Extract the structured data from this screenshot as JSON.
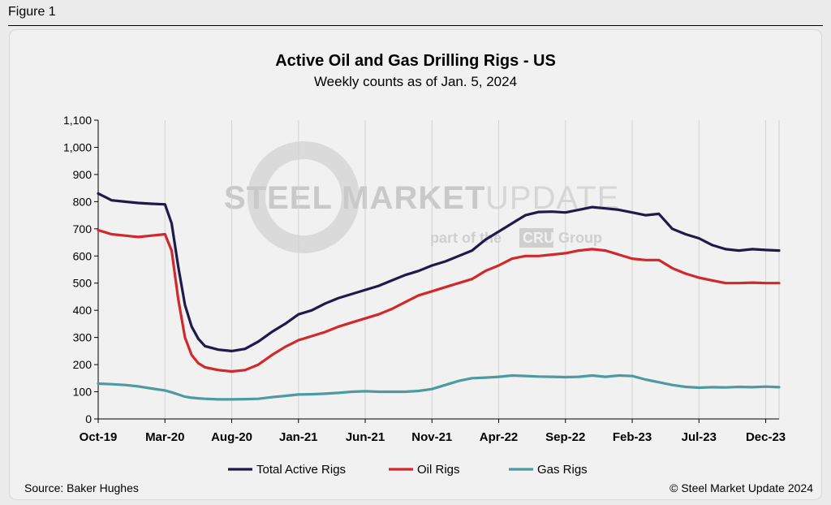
{
  "figure_label": "Figure 1",
  "source": "Source: Baker Hughes",
  "copyright": "© Steel Market Update 2024",
  "watermark": {
    "main_bold": "STEEL MARKET",
    "main_light": "UPDATE",
    "sub_before": "part of the",
    "sub_brand": "CRU",
    "sub_after": "Group"
  },
  "chart_data": {
    "type": "line",
    "title": "Active Oil and Gas Drilling Rigs - US",
    "subtitle": "Weekly counts as of Jan. 5, 2024",
    "xlabel": "",
    "ylabel": "",
    "ylim": [
      0,
      1100
    ],
    "yticks": [
      0,
      100,
      200,
      300,
      400,
      500,
      600,
      700,
      800,
      900,
      1000,
      1100
    ],
    "ytick_labels": [
      "0",
      "100",
      "200",
      "300",
      "400",
      "500",
      "600",
      "700",
      "800",
      "900",
      "1,000",
      "1,100"
    ],
    "x_tick_labels": [
      "Oct-19",
      "Mar-20",
      "Aug-20",
      "Jan-21",
      "Jun-21",
      "Nov-21",
      "Apr-22",
      "Sep-22",
      "Feb-23",
      "Jul-23",
      "Dec-23"
    ],
    "x_tick_months": [
      0,
      5,
      10,
      15,
      20,
      25,
      30,
      35,
      40,
      45,
      50
    ],
    "xlim_months": [
      0,
      51
    ],
    "grid": "vertical",
    "legend_position": "bottom",
    "x": [
      0,
      1,
      2,
      3,
      4,
      5,
      5.5,
      6,
      6.5,
      7,
      7.5,
      8,
      9,
      10,
      11,
      12,
      13,
      14,
      15,
      16,
      17,
      18,
      19,
      20,
      21,
      22,
      23,
      24,
      25,
      26,
      27,
      28,
      29,
      30,
      31,
      32,
      33,
      34,
      35,
      36,
      37,
      38,
      39,
      40,
      41,
      42,
      43,
      44,
      45,
      46,
      47,
      48,
      49,
      50,
      51
    ],
    "series": [
      {
        "name": "Total Active Rigs",
        "color": "#1f1a4a",
        "values": [
          830,
          805,
          800,
          795,
          792,
          790,
          720,
          560,
          420,
          340,
          295,
          268,
          255,
          250,
          258,
          285,
          320,
          350,
          385,
          400,
          425,
          445,
          460,
          475,
          490,
          510,
          530,
          545,
          565,
          580,
          600,
          620,
          660,
          690,
          720,
          750,
          762,
          763,
          760,
          770,
          780,
          775,
          770,
          760,
          750,
          755,
          700,
          680,
          665,
          640,
          625,
          620,
          625,
          622,
          620
        ]
      },
      {
        "name": "Oil Rigs",
        "color": "#d1282c",
        "values": [
          695,
          680,
          675,
          670,
          675,
          680,
          620,
          440,
          300,
          235,
          205,
          190,
          180,
          175,
          180,
          200,
          235,
          265,
          290,
          305,
          320,
          340,
          355,
          370,
          385,
          405,
          430,
          455,
          470,
          485,
          500,
          515,
          545,
          565,
          590,
          600,
          600,
          605,
          610,
          620,
          625,
          620,
          605,
          590,
          585,
          585,
          555,
          535,
          520,
          510,
          500,
          500,
          502,
          500,
          500
        ]
      },
      {
        "name": "Gas Rigs",
        "color": "#4f9aa2",
        "values": [
          130,
          128,
          125,
          120,
          112,
          105,
          98,
          90,
          82,
          78,
          76,
          74,
          72,
          72,
          73,
          74,
          80,
          85,
          90,
          91,
          93,
          96,
          100,
          102,
          100,
          100,
          100,
          103,
          110,
          125,
          140,
          150,
          152,
          155,
          160,
          158,
          156,
          155,
          154,
          155,
          160,
          155,
          160,
          158,
          145,
          135,
          125,
          118,
          115,
          117,
          116,
          118,
          117,
          119,
          117
        ]
      }
    ]
  }
}
